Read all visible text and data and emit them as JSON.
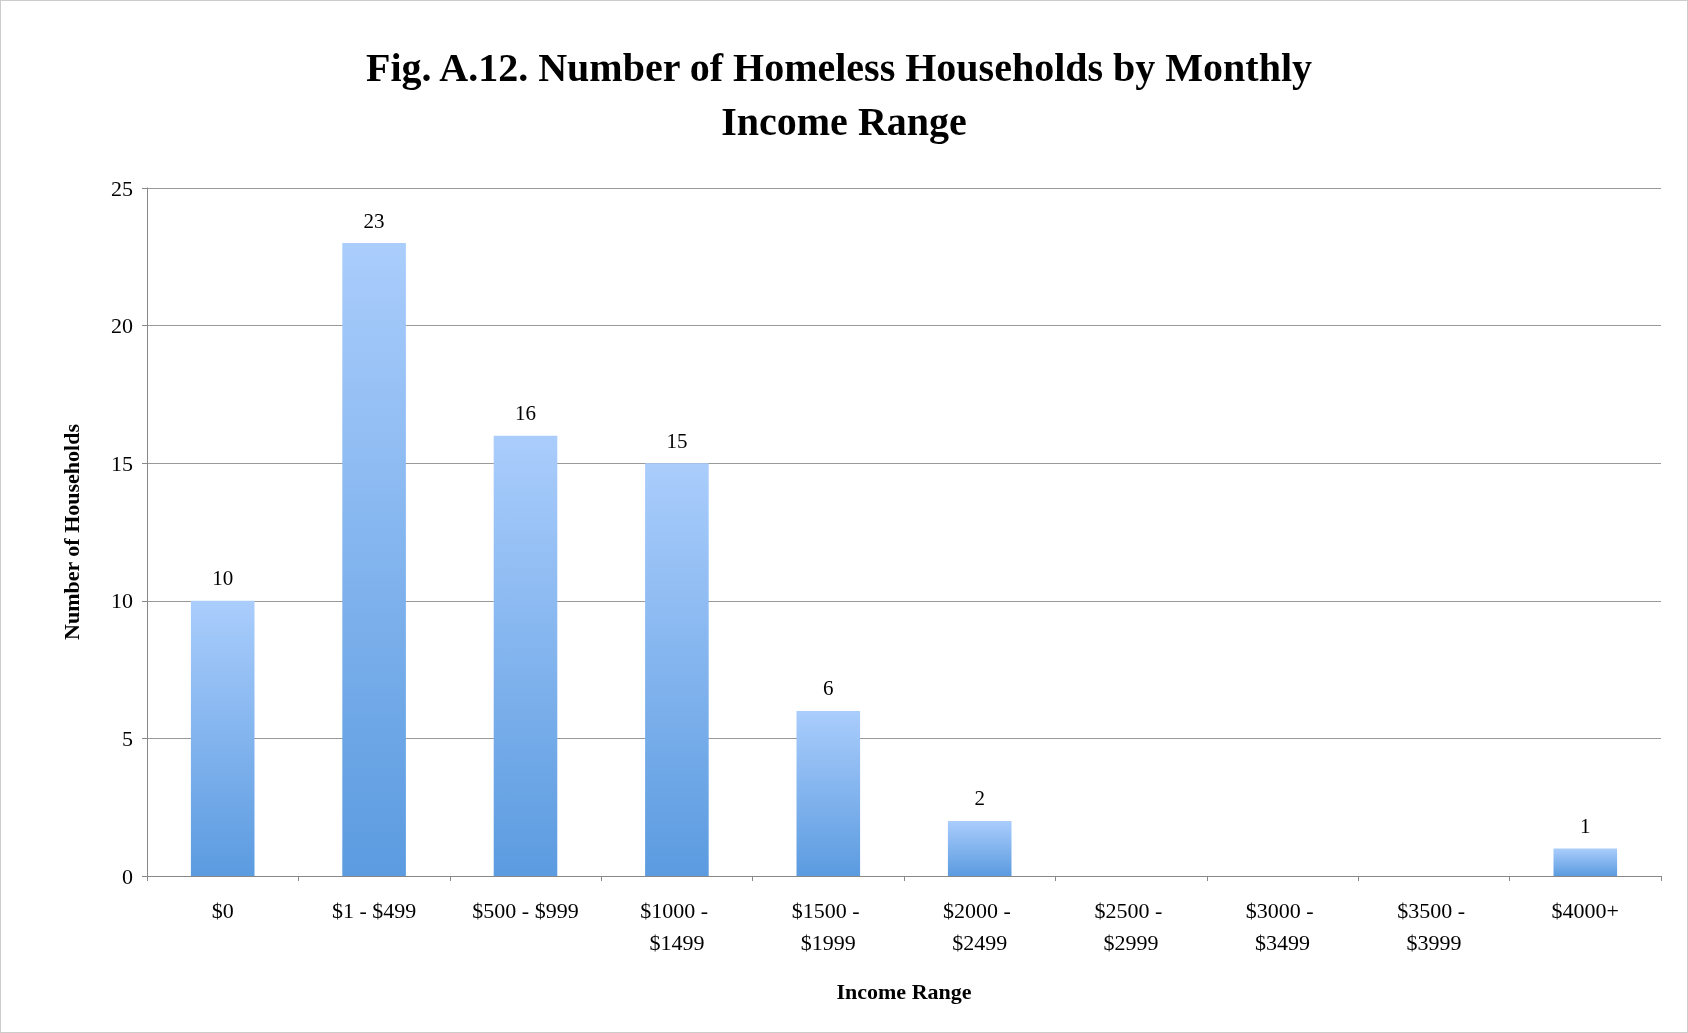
{
  "chart_data": {
    "type": "bar",
    "title": "Fig. A.12. Number of Homeless Households by Monthly Income Range",
    "xlabel": "Income Range",
    "ylabel": "Number of Households",
    "categories": [
      "$0",
      "$1 - $499",
      "$500 - $999",
      "$1000 - $1499",
      "$1500 - $1999",
      "$2000 - $2499",
      "$2500 - $2999",
      "$3000 - $3499",
      "$3500 - $3999",
      "$4000+"
    ],
    "values": [
      10,
      23,
      16,
      15,
      6,
      2,
      0,
      0,
      0,
      1
    ],
    "value_labels": [
      "10",
      "23",
      "16",
      "15",
      "6",
      "2",
      null,
      null,
      null,
      "1"
    ],
    "color": "#5b9be0",
    "ylim": [
      0,
      25
    ],
    "yticks": [
      0,
      5,
      10,
      15,
      20,
      25
    ],
    "grid": "y"
  }
}
